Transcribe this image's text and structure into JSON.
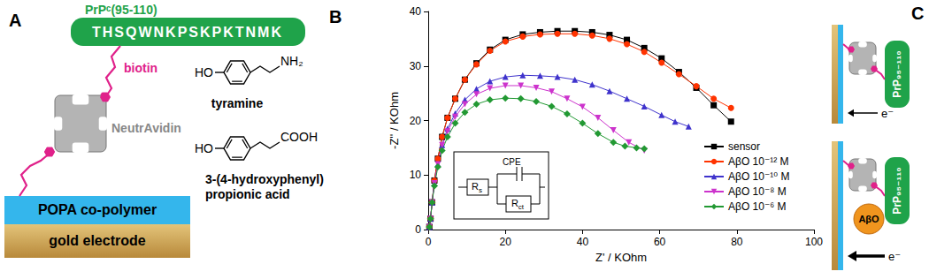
{
  "panel_a": {
    "letter": "A",
    "peptide_name": "PrPᶜ(95-110)",
    "sequence": "THSQWNKPSKPKTNMK",
    "linker": "biotin",
    "protein": "NeutrAvidin",
    "layers": [
      "POPA co-polymer",
      "gold electrode"
    ],
    "molecules": [
      {
        "name": "tyramine",
        "groups": [
          "HO",
          "NH₂"
        ]
      },
      {
        "name": "3-(4-hydroxyphenyl) propionic acid",
        "groups": [
          "HO",
          "COOH"
        ]
      }
    ]
  },
  "panel_b": {
    "letter": "B",
    "inset": [
      {
        "text": "R",
        "subscript": "s"
      },
      {
        "text": "CPE"
      },
      {
        "text": "R",
        "subscript": "ct"
      }
    ]
  },
  "chart_data": {
    "type": "line",
    "x_label": "Z' / KOhm",
    "y_label": "-Z'' / KOhm",
    "xlim": [
      0,
      100
    ],
    "xticks": [
      0,
      20,
      40,
      60,
      80,
      100
    ],
    "ylim": [
      0,
      40
    ],
    "yticks": [
      0,
      10,
      20,
      30,
      40
    ],
    "grid": false,
    "legend": "lower right",
    "series": [
      {
        "name": "sensor",
        "color": "#000000",
        "marker": "square",
        "x": [
          0.3,
          0.6,
          1,
          1.6,
          2.5,
          3.6,
          5,
          7,
          9.5,
          12.5,
          16,
          20,
          24.5,
          29,
          33.5,
          38,
          42.5,
          47,
          51.5,
          56,
          60.5,
          65,
          69.5,
          74,
          78.5
        ],
        "values": [
          0.5,
          2,
          5,
          9,
          13,
          17,
          20.5,
          24,
          27.5,
          30.5,
          33,
          34.8,
          35.8,
          36.2,
          36.4,
          36.4,
          36.2,
          35.7,
          34.8,
          33.3,
          31.4,
          28.9,
          26,
          22.8,
          19.8
        ]
      },
      {
        "name": "AβO 10⁻¹² M",
        "color": "#ff3300",
        "marker": "circle",
        "x": [
          0.3,
          0.6,
          1,
          1.6,
          2.5,
          3.6,
          5,
          7,
          9.5,
          12.5,
          16,
          20,
          24.5,
          29,
          33.5,
          38,
          42.5,
          47,
          51.5,
          56,
          60.5,
          65,
          69.5,
          74,
          78.5
        ],
        "values": [
          0.5,
          2,
          5,
          9,
          13,
          17,
          20.5,
          24,
          27.5,
          30.3,
          32.8,
          34.5,
          35.4,
          35.8,
          35.9,
          35.9,
          35.6,
          35,
          34,
          32.6,
          30.6,
          28.5,
          26.3,
          24,
          22.3
        ]
      },
      {
        "name": "AβO 10⁻¹⁰ M",
        "color": "#3f33cc",
        "marker": "triangle",
        "x": [
          0.3,
          0.6,
          1,
          1.6,
          2.5,
          3.6,
          5,
          7,
          9.5,
          12.5,
          16,
          20,
          24.5,
          29,
          33.5,
          38,
          42.5,
          47,
          51.5,
          56,
          60.5,
          64,
          67.5
        ],
        "values": [
          0.5,
          2,
          5,
          8.5,
          12,
          15.5,
          18.5,
          21.3,
          23.8,
          25.8,
          27.2,
          28,
          28.3,
          28.2,
          28,
          27.5,
          26.6,
          25.4,
          24,
          22.6,
          21,
          19.8,
          18.9
        ]
      },
      {
        "name": "AβO 10⁻⁸ M",
        "color": "#cc33cc",
        "marker": "triangle-down",
        "x": [
          0.3,
          0.6,
          1,
          1.6,
          2.5,
          3.6,
          5,
          7,
          9.5,
          12.5,
          16,
          20,
          24,
          28,
          32,
          36,
          40,
          44,
          48,
          52,
          56
        ],
        "values": [
          0.5,
          2,
          5,
          8.5,
          12,
          15.5,
          18,
          20.7,
          23,
          24.8,
          25.9,
          26.4,
          26.4,
          26,
          25.3,
          24,
          22.5,
          20.5,
          18.2,
          16,
          14.5
        ]
      },
      {
        "name": "AβO 10⁻⁶ M",
        "color": "#229933",
        "marker": "diamond",
        "x": [
          0.3,
          0.6,
          1,
          1.6,
          2.5,
          3.6,
          5,
          7,
          9.5,
          12.5,
          16,
          20,
          24,
          28,
          32,
          36,
          40,
          44,
          48,
          51,
          54,
          56
        ],
        "values": [
          0.5,
          2,
          5,
          8,
          11.5,
          14.5,
          17,
          19.5,
          21.5,
          23,
          23.8,
          24.1,
          24,
          23.5,
          22.6,
          21.2,
          19.5,
          17.6,
          16,
          15.3,
          15,
          14.8
        ]
      }
    ]
  },
  "panel_c": {
    "letter": "C",
    "peptide": "PrP₉₅₋₁₁₀",
    "electron": "e⁻",
    "aggregate": "AβO"
  }
}
